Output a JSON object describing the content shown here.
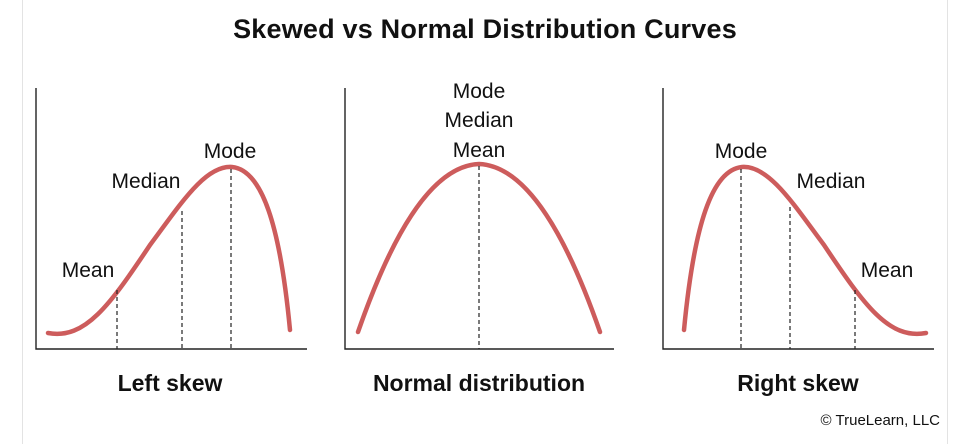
{
  "title": "Skewed vs Normal Distribution Curves",
  "curve_color": "#cd5c5c",
  "panels": [
    {
      "caption": "Left skew",
      "labels": {
        "mean": "Mean",
        "median": "Median",
        "mode": "Mode"
      }
    },
    {
      "caption": "Normal distribution",
      "labels": {
        "mode": "Mode",
        "median": "Median",
        "mean": "Mean"
      }
    },
    {
      "caption": "Right skew",
      "labels": {
        "mode": "Mode",
        "median": "Median",
        "mean": "Mean"
      }
    }
  ],
  "copyright": "© TrueLearn, LLC"
}
